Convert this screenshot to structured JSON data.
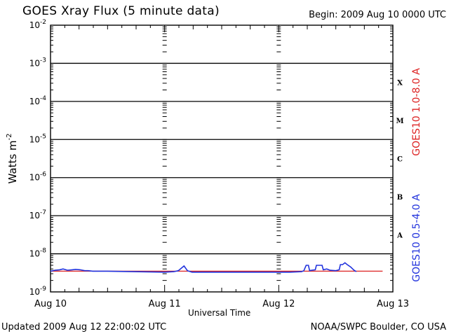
{
  "header": {
    "title": "GOES Xray Flux (5 minute data)",
    "begin": "Begin:  2009 Aug 10 0000 UTC"
  },
  "footer": {
    "updated": "Updated 2009 Aug 12 22:00:02 UTC",
    "credit": "NOAA/SWPC Boulder, CO USA"
  },
  "chart_data": {
    "type": "line",
    "title": "GOES Xray Flux (5 minute data)",
    "xlabel": "Universal Time",
    "ylabel": "Watts m",
    "ylabel_sup": "-2",
    "y_scale": "log",
    "ylim": [
      1e-09,
      0.01
    ],
    "xlim": [
      0,
      3
    ],
    "grid": "horizontal at each decade",
    "x_ticks": [
      {
        "x": 0,
        "label": "Aug 10"
      },
      {
        "x": 1,
        "label": "Aug 11"
      },
      {
        "x": 2,
        "label": "Aug 12"
      },
      {
        "x": 3,
        "label": "Aug 13"
      }
    ],
    "y_ticks": [
      {
        "exp": -2,
        "base": "10",
        "sup": "-2"
      },
      {
        "exp": -3,
        "base": "10",
        "sup": "-3"
      },
      {
        "exp": -4,
        "base": "10",
        "sup": "-4"
      },
      {
        "exp": -5,
        "base": "10",
        "sup": "-5"
      },
      {
        "exp": -6,
        "base": "10",
        "sup": "-6"
      },
      {
        "exp": -7,
        "base": "10",
        "sup": "-7"
      },
      {
        "exp": -8,
        "base": "10",
        "sup": "-8"
      },
      {
        "exp": -9,
        "base": "10",
        "sup": "-9"
      }
    ],
    "flare_classes": [
      {
        "label": "X",
        "exp": -3.5
      },
      {
        "label": "M",
        "exp": -4.5
      },
      {
        "label": "C",
        "exp": -5.5
      },
      {
        "label": "B",
        "exp": -6.5
      },
      {
        "label": "A",
        "exp": -7.5
      }
    ],
    "series": [
      {
        "name": "GOES10 1.0-8.0 A",
        "color": "#dd2222",
        "points": [
          [
            0.0,
            3.5e-09
          ],
          [
            2.91,
            3.5e-09
          ]
        ]
      },
      {
        "name": "GOES10 0.5-4.0 A",
        "color": "#2233dd",
        "points": [
          [
            0.0,
            3.5e-09
          ],
          [
            0.04,
            3.7e-09
          ],
          [
            0.08,
            3.8e-09
          ],
          [
            0.11,
            4e-09
          ],
          [
            0.15,
            3.7e-09
          ],
          [
            0.19,
            3.8e-09
          ],
          [
            0.22,
            3.9e-09
          ],
          [
            0.26,
            3.8e-09
          ],
          [
            0.3,
            3.6e-09
          ],
          [
            0.33,
            3.6e-09
          ],
          [
            0.37,
            3.5e-09
          ],
          [
            0.41,
            3.5e-09
          ],
          [
            0.45,
            3.5e-09
          ],
          [
            0.5,
            3.5e-09
          ],
          [
            1.0,
            3.3e-09
          ],
          [
            1.08,
            3.4e-09
          ],
          [
            1.12,
            3.6e-09
          ],
          [
            1.17,
            4.8e-09
          ],
          [
            1.2,
            3.6e-09
          ],
          [
            1.24,
            3.3e-09
          ],
          [
            1.3,
            3.3e-09
          ],
          [
            1.4,
            3.3e-09
          ],
          [
            1.5,
            3.3e-09
          ],
          [
            2.0,
            3.3e-09
          ],
          [
            2.1,
            3.3e-09
          ],
          [
            2.2,
            3.4e-09
          ],
          [
            2.22,
            3.6e-09
          ],
          [
            2.24,
            5e-09
          ],
          [
            2.26,
            5e-09
          ],
          [
            2.27,
            3.6e-09
          ],
          [
            2.29,
            3.7e-09
          ],
          [
            2.32,
            3.8e-09
          ],
          [
            2.33,
            5e-09
          ],
          [
            2.38,
            5e-09
          ],
          [
            2.39,
            3.8e-09
          ],
          [
            2.42,
            4e-09
          ],
          [
            2.45,
            3.7e-09
          ],
          [
            2.5,
            3.6e-09
          ],
          [
            2.53,
            3.8e-09
          ],
          [
            2.54,
            5.2e-09
          ],
          [
            2.56,
            5.2e-09
          ],
          [
            2.58,
            5.8e-09
          ],
          [
            2.6,
            5.2e-09
          ],
          [
            2.63,
            4.5e-09
          ],
          [
            2.66,
            3.7e-09
          ],
          [
            2.68,
            3.4e-09
          ]
        ]
      }
    ]
  }
}
